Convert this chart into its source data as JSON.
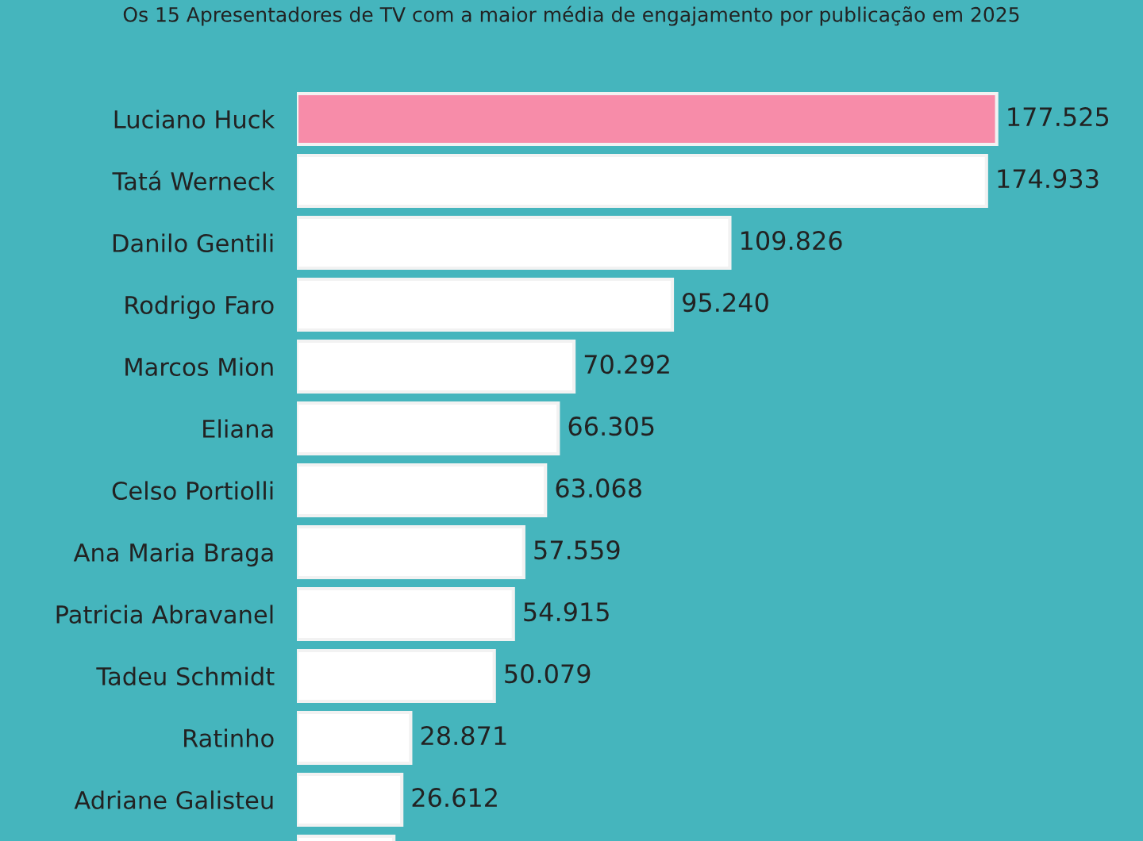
{
  "chart_data": {
    "type": "bar",
    "orientation": "horizontal",
    "title": "Os 15 Apresentadores de TV com a maior média de engajamento por publicação em 2025",
    "categories": [
      "Luciano Huck",
      "Tatá Werneck",
      "Danilo Gentili",
      "Rodrigo Faro",
      "Marcos Mion",
      "Eliana",
      "Celso Portiolli",
      "Ana Maria Braga",
      "Patricia Abravanel",
      "Tadeu Schmidt",
      "Ratinho",
      "Adriane Galisteu",
      null
    ],
    "values": [
      177525,
      174933,
      109826,
      95240,
      70292,
      66305,
      63068,
      57559,
      54915,
      50079,
      28871,
      26612,
      24600
    ],
    "value_labels": [
      "177.525",
      "174.933",
      "109.826",
      "95.240",
      "70.292",
      "66.305",
      "63.068",
      "57.559",
      "54.915",
      "50.079",
      "28.871",
      "26.612",
      null
    ],
    "colors": [
      "#f78ca9",
      "#ffffff",
      "#ffffff",
      "#ffffff",
      "#ffffff",
      "#ffffff",
      "#ffffff",
      "#ffffff",
      "#ffffff",
      "#ffffff",
      "#ffffff",
      "#ffffff",
      "#ffffff"
    ],
    "grid": false
  }
}
